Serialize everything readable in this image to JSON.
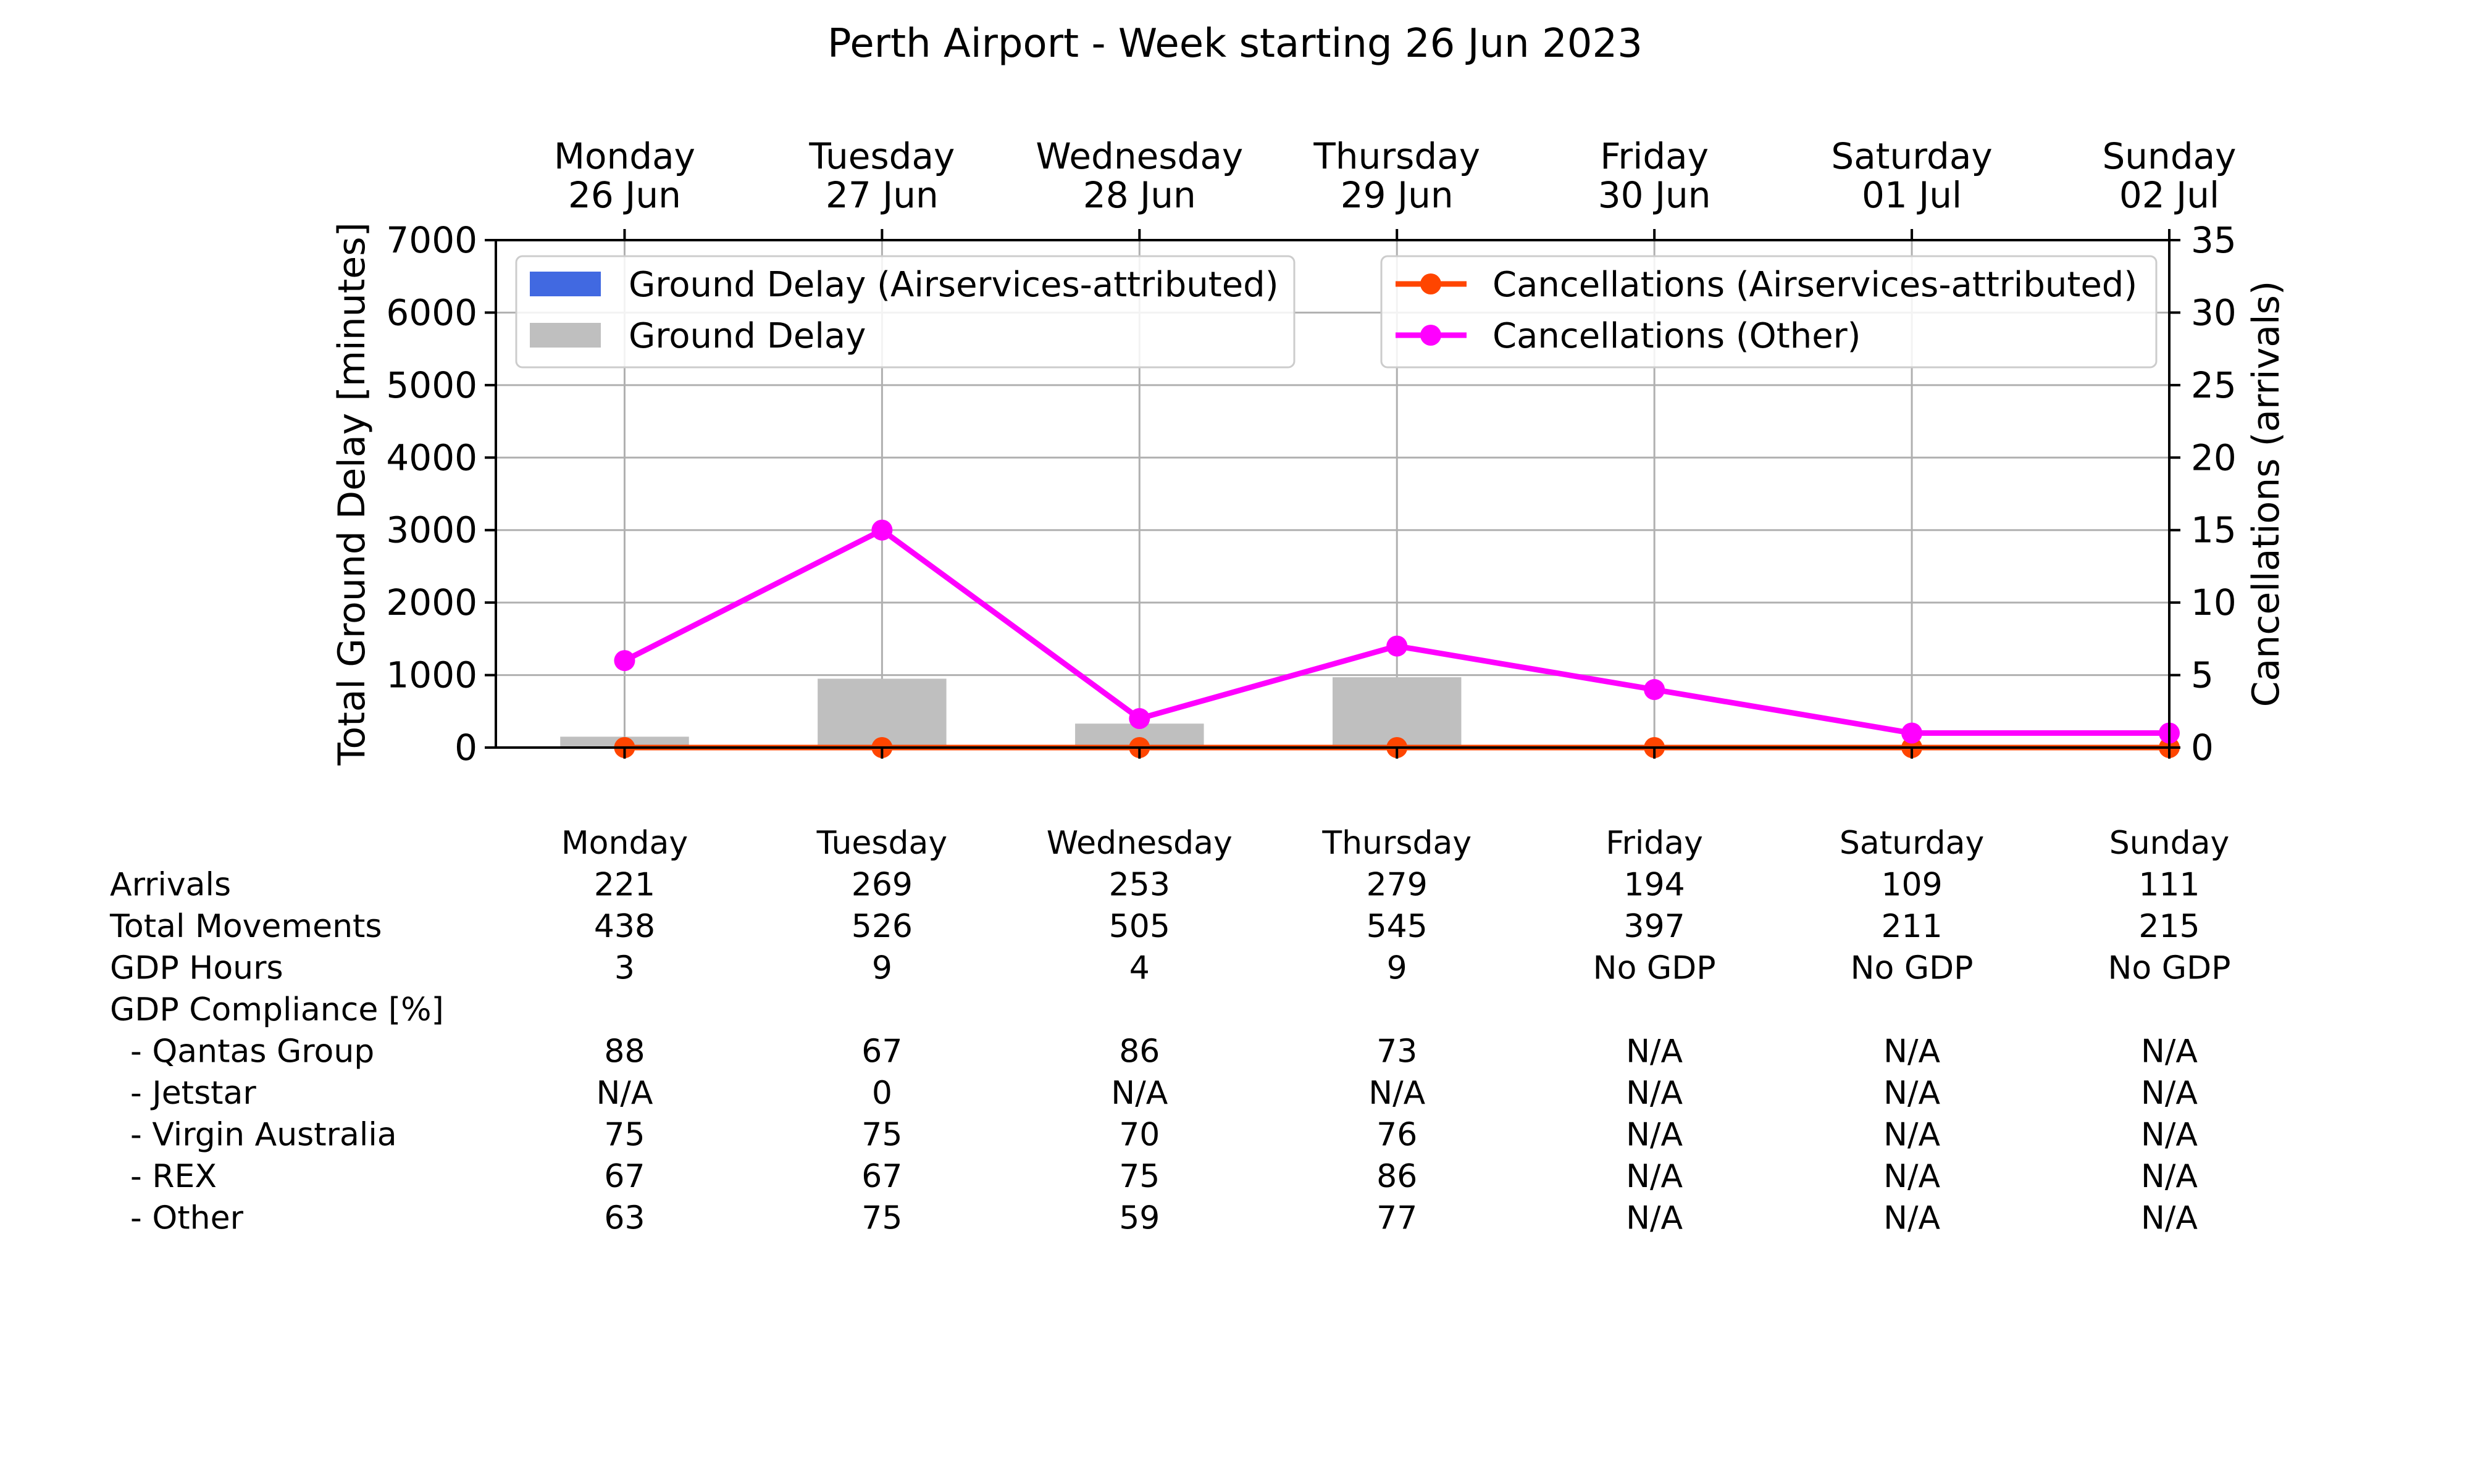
{
  "chart_data": {
    "type": "bar",
    "title": "Perth Airport - Week starting 26 Jun 2023",
    "top_x_labels": [
      {
        "line1": "Monday",
        "line2": "26 Jun"
      },
      {
        "line1": "Tuesday",
        "line2": "27 Jun"
      },
      {
        "line1": "Wednesday",
        "line2": "28 Jun"
      },
      {
        "line1": "Thursday",
        "line2": "29 Jun"
      },
      {
        "line1": "Friday",
        "line2": "30 Jun"
      },
      {
        "line1": "Saturday",
        "line2": "01 Jul"
      },
      {
        "line1": "Sunday",
        "line2": "02 Jul"
      }
    ],
    "categories": [
      "Monday",
      "Tuesday",
      "Wednesday",
      "Thursday",
      "Friday",
      "Saturday",
      "Sunday"
    ],
    "ylabel_left": "Total Ground Delay [minutes]",
    "ylabel_right": "Cancellations (arrivals)",
    "ylim_left": [
      0,
      7000
    ],
    "ylim_right": [
      0,
      35
    ],
    "yticks_left": [
      "0",
      "1000",
      "2000",
      "3000",
      "4000",
      "5000",
      "6000",
      "7000"
    ],
    "yticks_right": [
      "0",
      "5",
      "10",
      "15",
      "20",
      "25",
      "30",
      "35"
    ],
    "grid": true,
    "bar_series": [
      {
        "name": "Ground Delay (Airservices-attributed)",
        "color": "#4169e1",
        "values": [
          0,
          0,
          0,
          0,
          0,
          0,
          0
        ]
      },
      {
        "name": "Ground Delay",
        "color": "#bfbfbf",
        "values": [
          150,
          950,
          330,
          970,
          0,
          0,
          0
        ]
      }
    ],
    "line_series": [
      {
        "name": "Cancellations (Airservices-attributed)",
        "color": "#ff4500",
        "values": [
          0,
          0,
          0,
          0,
          0,
          0,
          0
        ]
      },
      {
        "name": "Cancellations (Other)",
        "color": "#ff00ff",
        "values": [
          6,
          15,
          2,
          7,
          4,
          1,
          1
        ]
      }
    ],
    "legend_left_placement": "upper-left",
    "legend_right_placement": "upper-right",
    "table": {
      "header": [
        "",
        "Monday",
        "Tuesday",
        "Wednesday",
        "Thursday",
        "Friday",
        "Saturday",
        "Sunday"
      ],
      "rows": [
        [
          "Arrivals",
          "221",
          "269",
          "253",
          "279",
          "194",
          "109",
          "111"
        ],
        [
          "Total Movements",
          "438",
          "526",
          "505",
          "545",
          "397",
          "211",
          "215"
        ],
        [
          "GDP Hours",
          "3",
          "9",
          "4",
          "9",
          "No GDP",
          "No GDP",
          "No GDP"
        ],
        [
          "GDP Compliance [%]",
          "",
          "",
          "",
          "",
          "",
          "",
          ""
        ],
        [
          "  - Qantas Group",
          "88",
          "67",
          "86",
          "73",
          "N/A",
          "N/A",
          "N/A"
        ],
        [
          "  - Jetstar",
          "N/A",
          "0",
          "N/A",
          "N/A",
          "N/A",
          "N/A",
          "N/A"
        ],
        [
          "  - Virgin Australia",
          "75",
          "75",
          "70",
          "76",
          "N/A",
          "N/A",
          "N/A"
        ],
        [
          "  - REX",
          "67",
          "67",
          "75",
          "86",
          "N/A",
          "N/A",
          "N/A"
        ],
        [
          "  - Other",
          "63",
          "75",
          "59",
          "77",
          "N/A",
          "N/A",
          "N/A"
        ]
      ]
    }
  }
}
